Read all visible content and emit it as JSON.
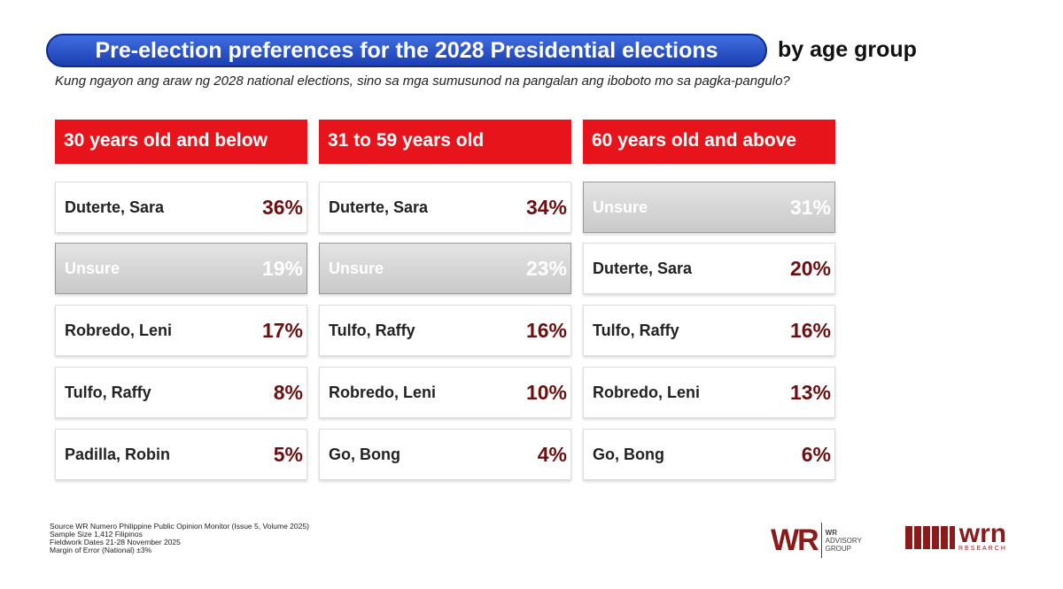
{
  "header": {
    "title": "Pre-election preferences for the 2028 Presidential elections",
    "title_suffix": "by age group",
    "question": "Kung ngayon ang araw ng 2028 national elections, sino sa mga sumusunod na pangalan ang iboboto mo sa pagka-pangulo?"
  },
  "groups": [
    {
      "label": "30 years old and below",
      "rows": [
        {
          "name": "Duterte, Sara",
          "value": "36%"
        },
        {
          "name": "Unsure",
          "value": "19%"
        },
        {
          "name": "Robredo, Leni",
          "value": "17%"
        },
        {
          "name": "Tulfo, Raffy",
          "value": "8%"
        },
        {
          "name": "Padilla, Robin",
          "value": "5%"
        }
      ]
    },
    {
      "label": "31 to 59 years old",
      "rows": [
        {
          "name": "Duterte, Sara",
          "value": "34%"
        },
        {
          "name": "Unsure",
          "value": "23%"
        },
        {
          "name": "Tulfo, Raffy",
          "value": "16%"
        },
        {
          "name": "Robredo, Leni",
          "value": "10%"
        },
        {
          "name": "Go, Bong",
          "value": "4%"
        }
      ]
    },
    {
      "label": "60 years old and above",
      "rows": [
        {
          "name": "Unsure",
          "value": "31%"
        },
        {
          "name": "Duterte, Sara",
          "value": "20%"
        },
        {
          "name": "Tulfo, Raffy",
          "value": "16%"
        },
        {
          "name": "Robredo, Leni",
          "value": "13%"
        },
        {
          "name": "Go, Bong",
          "value": "6%"
        }
      ]
    }
  ],
  "footer": {
    "notes": [
      "Source  WR Numero Philippine Public Opinion Monitor (Issue 5, Volume 2025)",
      "Sample Size  1,412 Filipinos",
      "Fieldwork Dates  21-28 November 2025",
      "Margin of Error (National)  ±3%"
    ]
  },
  "logos": {
    "wr_mark": "WR",
    "wr_small": "WR",
    "wr_line1": "ADVISORY",
    "wr_line2": "GROUP",
    "wrn": "wrn",
    "wrn_sub": "RESEARCH"
  }
}
